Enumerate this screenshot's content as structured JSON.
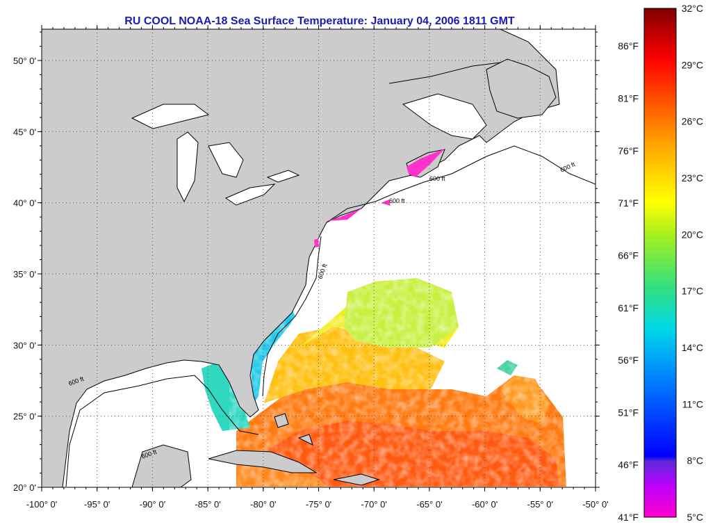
{
  "title": "RU COOL  NOAA-18  Sea Surface Temperature:  January 04, 2006 1811 GMT",
  "map": {
    "lat_labels": [
      "50° 0'",
      "45° 0'",
      "40° 0'",
      "35° 0'",
      "30° 0'",
      "25° 0'",
      "20° 0'"
    ],
    "lon_labels": [
      "-100° 0'",
      "-95° 0'",
      "-90° 0'",
      "-85° 0'",
      "-80° 0'",
      "-75° 0'",
      "-70° 0'",
      "-65° 0'",
      "-60° 0'",
      "-55° 0'",
      "-50° 0'"
    ],
    "lat_values": [
      50,
      45,
      40,
      35,
      30,
      25,
      20
    ],
    "lon_values": [
      -100,
      -95,
      -90,
      -85,
      -80,
      -75,
      -70,
      -65,
      -60,
      -55,
      -50
    ],
    "lat_range": [
      20,
      52.2
    ],
    "lon_range": [
      -100,
      -50
    ],
    "land_color": "#cccccc",
    "cloud_color": "#ffffff",
    "contour_labels": [
      "600 ft"
    ],
    "grid": "dotted"
  },
  "colorbar": {
    "celsius_labels": [
      "32°C",
      "29°C",
      "26°C",
      "23°C",
      "20°C",
      "17°C",
      "14°C",
      "11°C",
      "8°C",
      "5°C"
    ],
    "celsius_values": [
      32,
      29,
      26,
      23,
      20,
      17,
      14,
      11,
      8,
      5
    ],
    "fahrenheit_labels": [
      "86°F",
      "81°F",
      "76°F",
      "71°F",
      "66°F",
      "61°F",
      "56°F",
      "51°F",
      "46°F",
      "41°F"
    ],
    "fahrenheit_values": [
      86,
      81,
      76,
      71,
      66,
      61,
      56,
      51,
      46,
      41
    ],
    "range_c": [
      5,
      32
    ],
    "colors": [
      "#ff00cc",
      "#8a2be2",
      "#0000ff",
      "#00bfff",
      "#00e0e0",
      "#40e040",
      "#c8ff00",
      "#ffff00",
      "#ffb000",
      "#ff6000",
      "#ff0000",
      "#8b0000"
    ]
  },
  "chart_data": {
    "type": "heatmap",
    "title": "RU COOL  NOAA-18  Sea Surface Temperature:  January 04, 2006 1811 GMT",
    "x": {
      "range": [
        -100,
        -50
      ],
      "ticks": [
        -100,
        -95,
        -90,
        -85,
        -80,
        -75,
        -70,
        -65,
        -60,
        -55,
        -50
      ]
    },
    "y": {
      "range": [
        20,
        52.2
      ],
      "ticks": [
        20,
        25,
        30,
        35,
        40,
        45,
        50
      ]
    },
    "value_range_c": [
      5,
      32
    ],
    "value_range_f": [
      41,
      89.6
    ]
  }
}
